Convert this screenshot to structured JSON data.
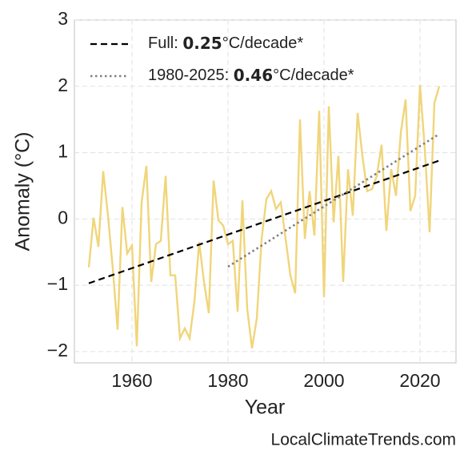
{
  "chart_data": {
    "type": "line",
    "xlabel": "Year",
    "ylabel": "Anomaly (°C)",
    "source": "LocalClimateTrends.com",
    "xlim": [
      1948,
      2027.5
    ],
    "ylim": [
      -2.17,
      3
    ],
    "xticks": [
      1960,
      1980,
      2000,
      2020
    ],
    "yticks": [
      {
        "value": -2,
        "label": "−2"
      },
      {
        "value": -1,
        "label": "−1"
      },
      0,
      1,
      2,
      3
    ],
    "grid": true,
    "legend": "upper left",
    "series": [
      {
        "name": null,
        "color": "#f0d57a",
        "style": "solid",
        "x": [
          1951,
          1952,
          1953,
          1954,
          1955,
          1956,
          1957,
          1958,
          1959,
          1960,
          1961,
          1962,
          1963,
          1964,
          1965,
          1966,
          1967,
          1968,
          1969,
          1970,
          1971,
          1972,
          1973,
          1974,
          1975,
          1976,
          1977,
          1978,
          1979,
          1980,
          1981,
          1982,
          1983,
          1984,
          1985,
          1986,
          1987,
          1988,
          1989,
          1990,
          1991,
          1992,
          1993,
          1994,
          1995,
          1996,
          1997,
          1998,
          1999,
          2000,
          2001,
          2002,
          2003,
          2004,
          2005,
          2006,
          2007,
          2008,
          2009,
          2010,
          2011,
          2012,
          2013,
          2014,
          2015,
          2016,
          2017,
          2018,
          2019,
          2020,
          2021,
          2022,
          2023,
          2024
        ],
        "values": [
          -0.73,
          0.02,
          -0.42,
          0.72,
          0.05,
          -0.75,
          -1.67,
          0.18,
          -0.52,
          -0.4,
          -1.92,
          0.25,
          0.8,
          -0.95,
          -0.38,
          -0.33,
          0.65,
          -0.85,
          -0.85,
          -1.8,
          -1.65,
          -1.8,
          -1.25,
          -0.35,
          -0.95,
          -1.42,
          0.58,
          -0.02,
          -0.1,
          -0.38,
          -0.33,
          -1.4,
          0.28,
          -1.35,
          -1.95,
          -1.5,
          -0.3,
          0.3,
          0.42,
          0.15,
          0.25,
          -0.3,
          -0.85,
          -1.12,
          1.5,
          -0.3,
          0.42,
          -0.25,
          1.63,
          -1.18,
          1.7,
          -0.05,
          0.95,
          -0.95,
          0.75,
          0.05,
          1.6,
          0.95,
          0.42,
          0.45,
          0.65,
          1.12,
          -0.18,
          0.75,
          0.35,
          1.3,
          1.8,
          0.12,
          0.35,
          2.02,
          1.05,
          -0.2,
          1.75,
          2.0
        ]
      },
      {
        "name": [
          "Full: ",
          "0.25",
          "°C/decade*"
        ],
        "color": "#000000",
        "style": "dashed",
        "x": [
          1951,
          2024
        ],
        "values": [
          -0.97,
          0.88
        ]
      },
      {
        "name": [
          "1980-2025: ",
          "0.46",
          "°C/decade*"
        ],
        "color": "#808080",
        "style": "dotted",
        "x": [
          1980,
          2024
        ],
        "values": [
          -0.72,
          1.28
        ]
      }
    ]
  }
}
